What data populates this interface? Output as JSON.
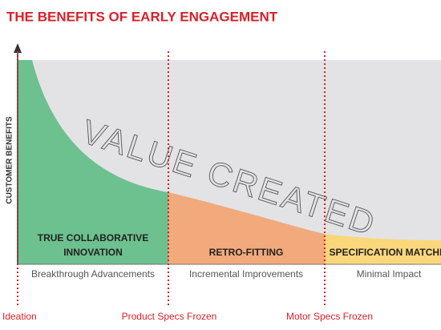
{
  "title": "THE BENEFITS OF EARLY ENGAGEMENT",
  "y_axis_label": "CUSTOMER BENEFITS",
  "curve_label": "VALUE CREATED",
  "phases": [
    {
      "label": [
        "TRUE COLLABORATIVE",
        "INNOVATION"
      ],
      "sublabel": "Breakthrough Advancements"
    },
    {
      "label": [
        "RETRO-FITTING"
      ],
      "sublabel": "Incremental Improvements"
    },
    {
      "label": [
        "SPECIFICATION MATCHING"
      ],
      "sublabel": "Minimal Impact"
    }
  ],
  "milestones": [
    "Ideation",
    "Product Specs Frozen",
    "Motor Specs Frozen"
  ]
}
